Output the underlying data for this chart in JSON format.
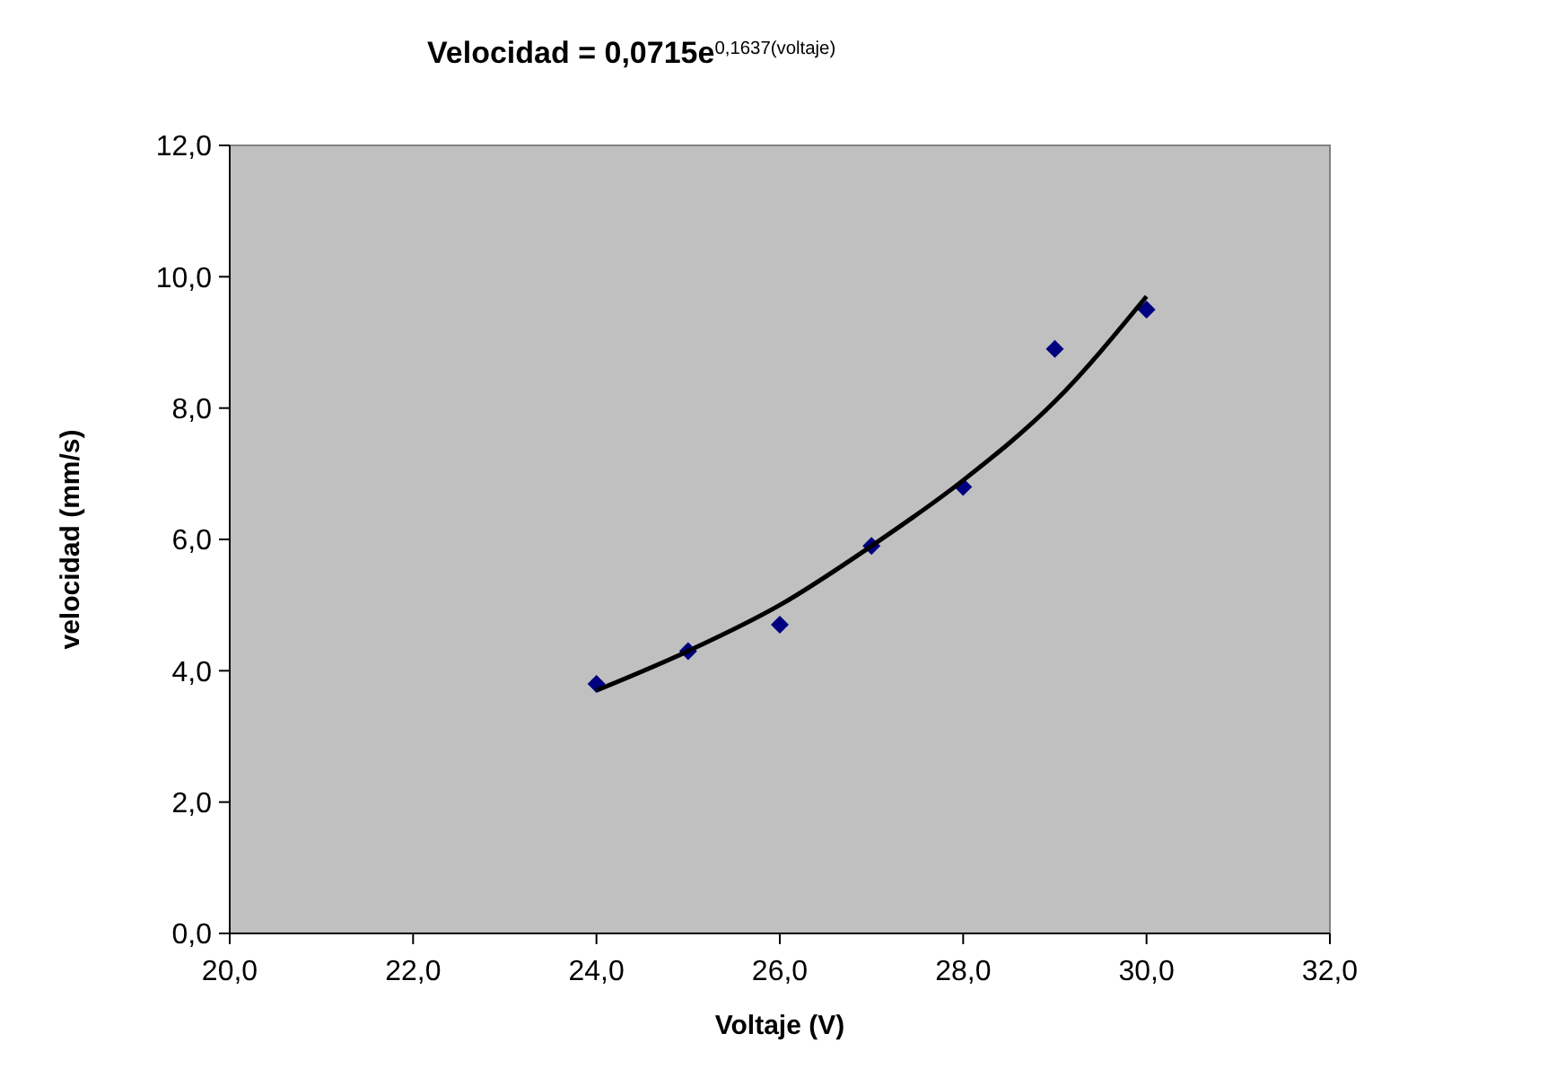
{
  "chart_data": {
    "type": "scatter",
    "title": "Velocidad = 0,0715e$^{0,1637(voltaje)}$",
    "xlabel": "Voltaje (V)",
    "ylabel": "velocidad (mm/s)",
    "xlim": [
      20,
      32
    ],
    "xticks": [
      {
        "value": 20,
        "label": "20,0"
      },
      {
        "value": 22,
        "label": "22,0"
      },
      {
        "value": 24,
        "label": "24,0"
      },
      {
        "value": 26,
        "label": "26,0"
      },
      {
        "value": 28,
        "label": "28,0"
      },
      {
        "value": 30,
        "label": "30,0"
      },
      {
        "value": 32,
        "label": "32,0"
      }
    ],
    "ylim": [
      0,
      12
    ],
    "yticks": [
      {
        "value": 0,
        "label": "0,0"
      },
      {
        "value": 2,
        "label": "2,0"
      },
      {
        "value": 4,
        "label": "4,0"
      },
      {
        "value": 6,
        "label": "6,0"
      },
      {
        "value": 8,
        "label": "8,0"
      },
      {
        "value": 10,
        "label": "10,0"
      },
      {
        "value": 12,
        "label": "12,0"
      }
    ],
    "grid": false,
    "marker": "diamond",
    "series": [
      {
        "type": "scatter",
        "color": "#000080",
        "x": [
          24,
          25,
          26,
          27,
          28,
          29,
          30
        ],
        "values": [
          3.8,
          4.3,
          4.7,
          5.9,
          6.8,
          8.9,
          9.5
        ]
      },
      {
        "type": "line",
        "color": "#000000",
        "marker": "none",
        "line_style": "solid",
        "x": [
          24,
          25,
          26,
          27,
          28,
          29,
          30
        ],
        "values": [
          3.7,
          4.3,
          5.0,
          5.9,
          6.9,
          8.1,
          9.7
        ]
      }
    ]
  }
}
